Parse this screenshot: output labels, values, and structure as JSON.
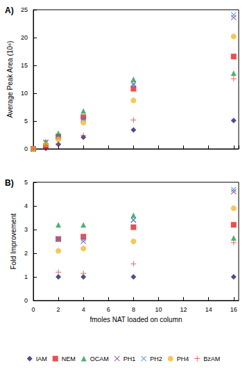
{
  "chart_data": [
    {
      "type": "scatter",
      "title": "A)",
      "ylabel": "Average Peak Area (10⁶)",
      "x": [
        0,
        1,
        2,
        4,
        8,
        16
      ],
      "xlim": [
        0,
        16.4
      ],
      "xticks": [
        0,
        2,
        4,
        6,
        8,
        10,
        12,
        14,
        16
      ],
      "ylim": [
        0,
        25
      ],
      "yticks": [
        0,
        5,
        10,
        15,
        20,
        25
      ],
      "grid": false,
      "tick_labels": "y",
      "series": [
        {
          "name": "IAM",
          "color": "#1f1f78",
          "marker": "diamond",
          "values": [
            0,
            0.1,
            0.8,
            2.1,
            3.4,
            5.1
          ]
        },
        {
          "name": "NEM",
          "color": "#e02424",
          "marker": "square",
          "values": [
            0,
            0.5,
            2.2,
            5.7,
            10.8,
            16.6
          ]
        },
        {
          "name": "OCAM",
          "color": "#1ea050",
          "marker": "triangle",
          "values": [
            0,
            1.3,
            2.8,
            6.8,
            12.5,
            13.6
          ]
        },
        {
          "name": "PH1",
          "color": "#7b3fa0",
          "marker": "x",
          "values": [
            0,
            1.2,
            2.1,
            5.3,
            11.5,
            23.6
          ]
        },
        {
          "name": "PH2",
          "color": "#3a8fd6",
          "marker": "x",
          "values": [
            0,
            1.1,
            2.1,
            5.4,
            11.7,
            24.1
          ]
        },
        {
          "name": "PH4",
          "color": "#f5b82e",
          "marker": "circle",
          "values": [
            0,
            0.8,
            1.7,
            4.7,
            8.7,
            20.2
          ]
        },
        {
          "name": "BzAM",
          "color": "#e0403a",
          "marker": "plus",
          "values": [
            0,
            0.6,
            0.9,
            2.4,
            5.2,
            12.6
          ]
        }
      ]
    },
    {
      "type": "scatter",
      "title": "B)",
      "ylabel": "Fold Improvement",
      "xlabel": "fmoles NAT loaded on column",
      "x": [
        2,
        4,
        8,
        16
      ],
      "xlim": [
        0,
        16.4
      ],
      "xticks": [
        0,
        2,
        4,
        6,
        8,
        10,
        12,
        14,
        16
      ],
      "ylim": [
        0,
        5
      ],
      "yticks": [
        0,
        1,
        2,
        3,
        4,
        5
      ],
      "grid": false,
      "legend": "bottom",
      "series": [
        {
          "name": "IAM",
          "color": "#1f1f78",
          "marker": "diamond",
          "values": [
            1,
            1,
            1,
            1
          ]
        },
        {
          "name": "NEM",
          "color": "#e02424",
          "marker": "square",
          "values": [
            2.6,
            2.7,
            3.1,
            3.2
          ]
        },
        {
          "name": "OCAM",
          "color": "#1ea050",
          "marker": "triangle",
          "values": [
            3.2,
            3.2,
            3.6,
            2.65
          ]
        },
        {
          "name": "PH1",
          "color": "#7b3fa0",
          "marker": "x",
          "values": [
            2.6,
            2.5,
            3.4,
            4.6
          ]
        },
        {
          "name": "PH2",
          "color": "#3a8fd6",
          "marker": "x",
          "values": [
            2.6,
            2.6,
            3.4,
            4.7
          ]
        },
        {
          "name": "PH4",
          "color": "#f5b82e",
          "marker": "circle",
          "values": [
            2.1,
            2.2,
            2.5,
            3.9
          ]
        },
        {
          "name": "BzAM",
          "color": "#e0403a",
          "marker": "plus",
          "values": [
            1.2,
            1.15,
            1.55,
            2.45
          ]
        }
      ]
    }
  ]
}
